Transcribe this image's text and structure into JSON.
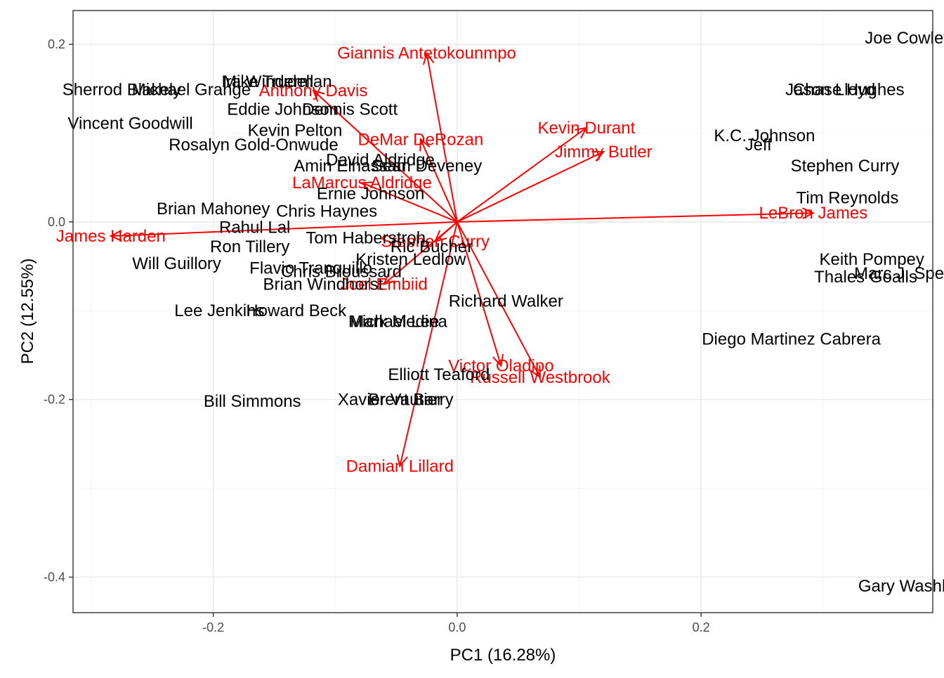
{
  "chart_data": {
    "type": "scatter",
    "xlabel": "PC1 (16.28%)",
    "ylabel": "PC2 (12.55%)",
    "xlim": [
      -0.315,
      0.39
    ],
    "ylim": [
      -0.44,
      0.238
    ],
    "x_ticks": [
      -0.2,
      0.0,
      0.2
    ],
    "x_tick_labels": [
      "-0.2",
      "0.0",
      "0.2"
    ],
    "y_ticks": [
      0.2,
      0.0,
      -0.2,
      -0.4
    ],
    "y_tick_labels": [
      "0.2",
      "0.0",
      "-0.2",
      "-0.4"
    ],
    "grid": true,
    "colors": {
      "observations": "#000000",
      "loadings": "#ff0000",
      "panel_border": "#333333"
    },
    "observations": [
      {
        "label": "Joe Cowley",
        "x": 0.37,
        "y": 0.207
      },
      {
        "label": "Chase Hughes",
        "x": 0.321,
        "y": 0.149
      },
      {
        "label": "Jason Lloyd",
        "x": 0.306,
        "y": 0.149
      },
      {
        "label": "K.C. Johnson",
        "x": 0.252,
        "y": 0.097
      },
      {
        "label": "Jeff",
        "x": 0.247,
        "y": 0.087
      },
      {
        "label": "Stephen Curry",
        "x": 0.318,
        "y": 0.063
      },
      {
        "label": "Tim Reynolds",
        "x": 0.32,
        "y": 0.027
      },
      {
        "label": "Keith Pompey",
        "x": 0.34,
        "y": -0.042
      },
      {
        "label": "Marc J. Spears",
        "x": 0.372,
        "y": -0.058
      },
      {
        "label": "Thales Goalls",
        "x": 0.335,
        "y": -0.062
      },
      {
        "label": "Diego Martinez Cabrera",
        "x": 0.274,
        "y": -0.132
      },
      {
        "label": "Gary Washburn",
        "x": 0.377,
        "y": -0.41
      },
      {
        "label": "Sherrod Blakely",
        "x": -0.275,
        "y": 0.149
      },
      {
        "label": "Michael Grange",
        "x": -0.218,
        "y": 0.149
      },
      {
        "label": "Vincent Goodwill",
        "x": -0.268,
        "y": 0.111
      },
      {
        "label": "Mike Trudell",
        "x": -0.155,
        "y": 0.158
      },
      {
        "label": "Ira Winderman",
        "x": -0.148,
        "y": 0.158
      },
      {
        "label": "Eddie Johnson",
        "x": -0.143,
        "y": 0.127
      },
      {
        "label": "Dennis Scott",
        "x": -0.088,
        "y": 0.127
      },
      {
        "label": "Kevin Pelton",
        "x": -0.133,
        "y": 0.103
      },
      {
        "label": "Rosalyn Gold-Onwude",
        "x": -0.167,
        "y": 0.087
      },
      {
        "label": "David Aldridge",
        "x": -0.063,
        "y": 0.07
      },
      {
        "label": "Sean Deveney",
        "x": -0.025,
        "y": 0.063
      },
      {
        "label": "Amin Elhassan",
        "x": -0.088,
        "y": 0.063
      },
      {
        "label": "Ernie Johnson",
        "x": -0.071,
        "y": 0.032
      },
      {
        "label": "Brian Mahoney",
        "x": -0.2,
        "y": 0.015
      },
      {
        "label": "Chris Haynes",
        "x": -0.107,
        "y": 0.012
      },
      {
        "label": "Rahul Lal",
        "x": -0.166,
        "y": -0.006
      },
      {
        "label": "Tom Haberstroh",
        "x": -0.075,
        "y": -0.018
      },
      {
        "label": "Ron Tillery",
        "x": -0.17,
        "y": -0.028
      },
      {
        "label": "Ric Bucher",
        "x": -0.021,
        "y": -0.028
      },
      {
        "label": "Kristen Ledlow",
        "x": -0.038,
        "y": -0.042
      },
      {
        "label": "Will Guillory",
        "x": -0.23,
        "y": -0.047
      },
      {
        "label": "Flavio Tranquillo",
        "x": -0.12,
        "y": -0.052
      },
      {
        "label": "Chris Broussard",
        "x": -0.095,
        "y": -0.056
      },
      {
        "label": "Brian Windhorst",
        "x": -0.11,
        "y": -0.07
      },
      {
        "label": "Richard Walker",
        "x": 0.04,
        "y": -0.089
      },
      {
        "label": "Lee Jenkins",
        "x": -0.195,
        "y": -0.1
      },
      {
        "label": "Howard Beck",
        "x": -0.132,
        "y": -0.1
      },
      {
        "label": "Mark Medina",
        "x": -0.048,
        "y": -0.112
      },
      {
        "label": "Michael Lee",
        "x": -0.052,
        "y": -0.112
      },
      {
        "label": "Elliott Teaford",
        "x": -0.015,
        "y": -0.172
      },
      {
        "label": "Bill Simmons",
        "x": -0.168,
        "y": -0.202
      },
      {
        "label": "Xavier Vautier",
        "x": -0.055,
        "y": -0.2
      },
      {
        "label": "Brent Barry",
        "x": -0.038,
        "y": -0.2
      }
    ],
    "loadings": [
      {
        "label": "Giannis Antetokounmpo",
        "x": -0.025,
        "y": 0.19
      },
      {
        "label": "Anthony Davis",
        "x": -0.118,
        "y": 0.148
      },
      {
        "label": "Kevin Durant",
        "x": 0.106,
        "y": 0.106
      },
      {
        "label": "Jimmy Butler",
        "x": 0.12,
        "y": 0.079
      },
      {
        "label": "DeMar DeRozan",
        "x": -0.03,
        "y": 0.093
      },
      {
        "label": "LaMarcus Aldridge",
        "x": -0.078,
        "y": 0.044
      },
      {
        "label": "LeBron James",
        "x": 0.292,
        "y": 0.01
      },
      {
        "label": "James Harden",
        "x": -0.284,
        "y": -0.016
      },
      {
        "label": "Stephen Curry",
        "x": -0.018,
        "y": -0.022
      },
      {
        "label": "Joel Embiid",
        "x": -0.06,
        "y": -0.07
      },
      {
        "label": "Victor Oladipo",
        "x": 0.036,
        "y": -0.162
      },
      {
        "label": "Russell Westbrook",
        "x": 0.068,
        "y": -0.175
      },
      {
        "label": "Damian Lillard",
        "x": -0.047,
        "y": -0.275
      }
    ]
  }
}
